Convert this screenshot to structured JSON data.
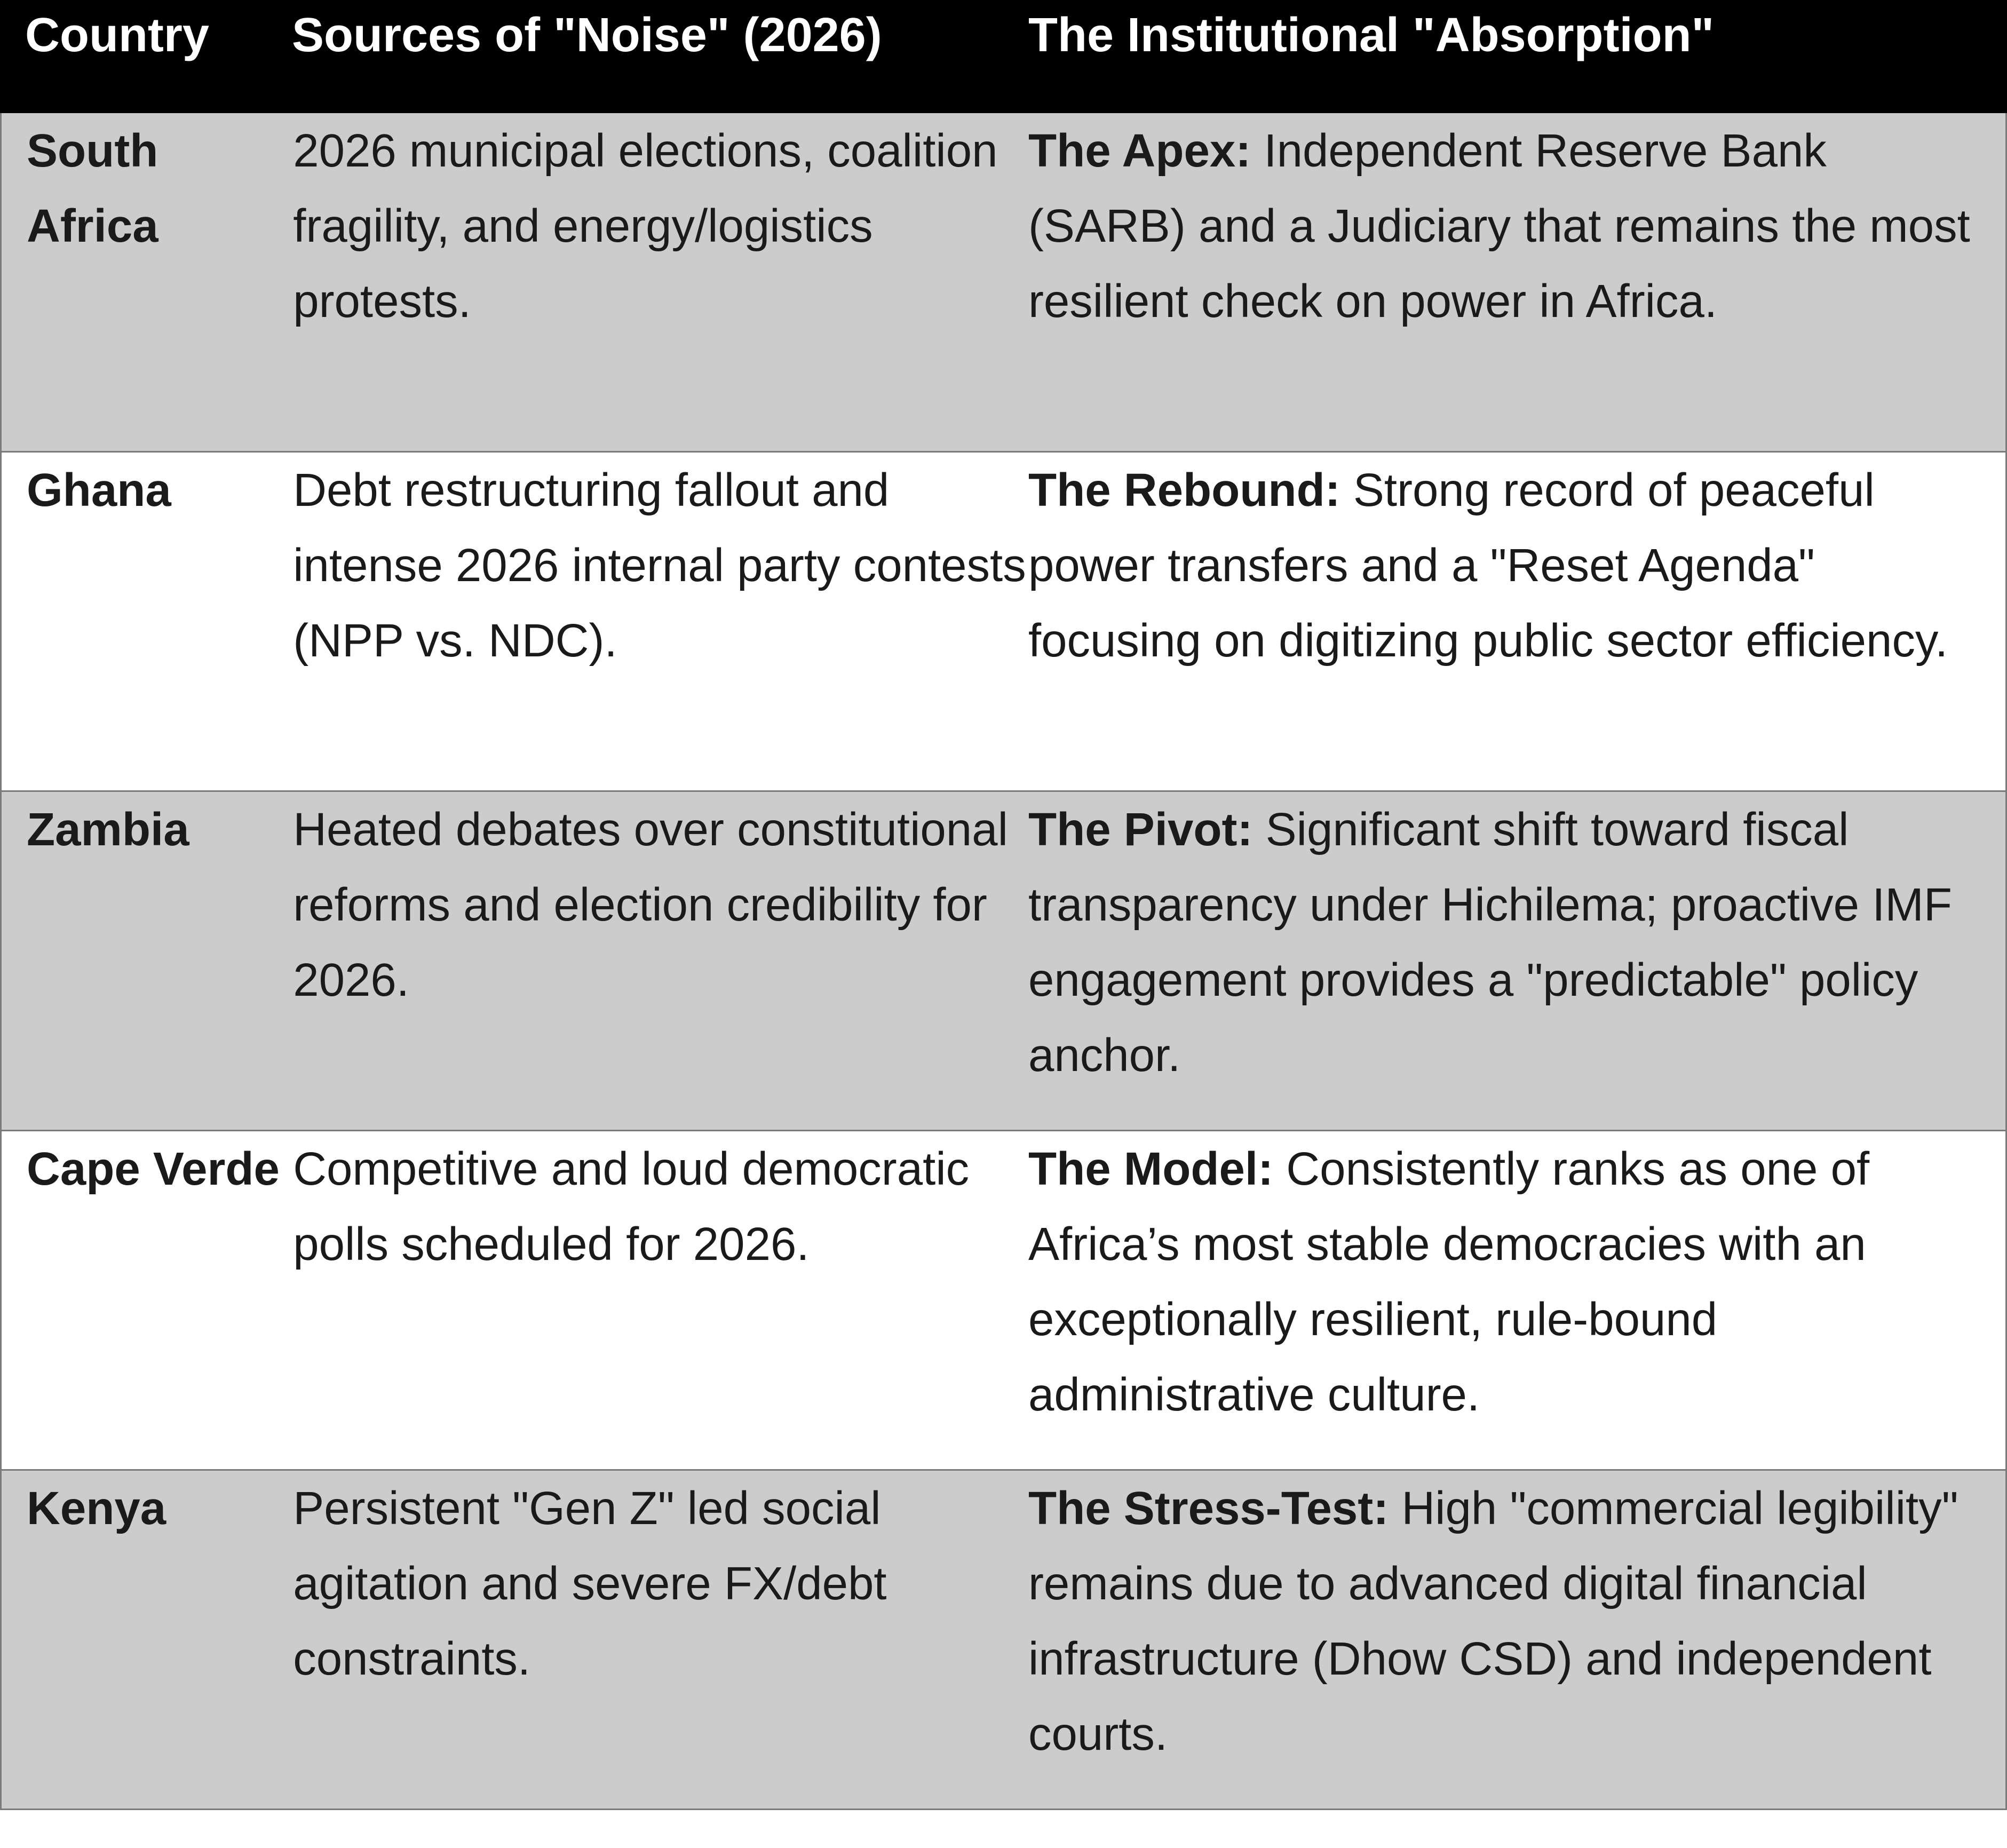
{
  "table": {
    "headers": {
      "country": "Country",
      "noise": "Sources of \"Noise\" (2026)",
      "absorption": "The Institutional \"Absorption\""
    },
    "rows": [
      {
        "country": "South Africa",
        "noise": "2026 municipal elections, coalition fragility, and energy/logistics protests.",
        "absorption_lead": "The Apex:",
        "absorption_text": " Independent Reserve Bank (SARB) and a Judiciary that remains the most resilient check on power in Africa."
      },
      {
        "country": "Ghana",
        "noise": "Debt restructuring fallout and intense 2026 internal party contests (NPP vs. NDC).",
        "absorption_lead": "The Rebound:",
        "absorption_text": " Strong record of peaceful power transfers and a \"Reset Agenda\" focusing on digitizing public sector efficiency."
      },
      {
        "country": "Zambia",
        "noise": "Heated debates over constitutional reforms and election credibility for 2026.",
        "absorption_lead": "The Pivot:",
        "absorption_text": " Significant shift toward fiscal transparency under Hichilema; proactive IMF engagement provides a \"predictable\" policy anchor."
      },
      {
        "country": "Cape Verde",
        "noise": "Competitive and loud democratic polls scheduled for 2026.",
        "absorption_lead": "The Model:",
        "absorption_text": " Consistently ranks as one of Africa’s most stable democracies with an exceptionally resilient, rule-bound administrative culture."
      },
      {
        "country": "Kenya",
        "noise": "Persistent \"Gen Z\" led social agitation and severe FX/debt constraints.",
        "absorption_lead": "The Stress-Test:",
        "absorption_text": " High \"commercial legibility\" remains due to advanced digital financial infrastructure (Dhow CSD) and independent courts."
      }
    ]
  }
}
